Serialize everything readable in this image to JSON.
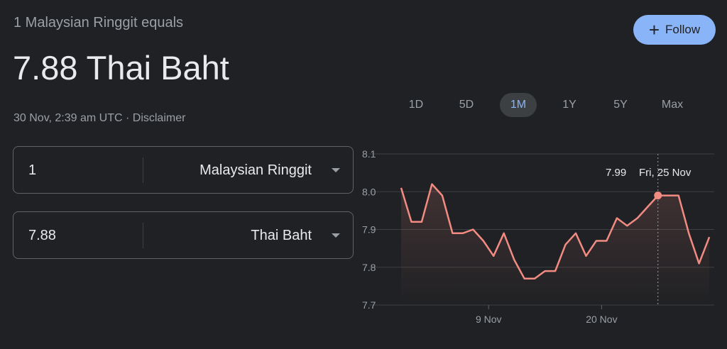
{
  "header": {
    "subtitle": "1 Malaysian Ringgit equals",
    "headline": "7.88 Thai Baht",
    "timestamp": "30 Nov, 2:39 am UTC",
    "separator": " · ",
    "disclaimer": "Disclaimer"
  },
  "follow_button": {
    "icon": "plus-icon",
    "label": "Follow",
    "plus": "+"
  },
  "converter": [
    {
      "amount": "1",
      "currency": "Malaysian Ringgit"
    },
    {
      "amount": "7.88",
      "currency": "Thai Baht"
    }
  ],
  "ranges": [
    {
      "label": "1D",
      "active": false
    },
    {
      "label": "5D",
      "active": false
    },
    {
      "label": "1M",
      "active": true
    },
    {
      "label": "1Y",
      "active": false
    },
    {
      "label": "5Y",
      "active": false
    },
    {
      "label": "Max",
      "active": false
    }
  ],
  "colors": {
    "background": "#202124",
    "line": "#f28b82",
    "accent": "#8ab4f8"
  },
  "chart_data": {
    "type": "line",
    "ylim": [
      7.7,
      8.1
    ],
    "yticks": [
      "8.1",
      "8.0",
      "7.9",
      "7.8",
      "7.7"
    ],
    "grid": true,
    "xticks": [
      {
        "label": "9 Nov",
        "index": 9
      },
      {
        "label": "20 Nov",
        "index": 20
      }
    ],
    "dates": [
      "31 Oct",
      "1 Nov",
      "2 Nov",
      "3 Nov",
      "4 Nov",
      "5 Nov",
      "6 Nov",
      "7 Nov",
      "8 Nov",
      "9 Nov",
      "10 Nov",
      "11 Nov",
      "12 Nov",
      "13 Nov",
      "14 Nov",
      "15 Nov",
      "16 Nov",
      "17 Nov",
      "18 Nov",
      "19 Nov",
      "20 Nov",
      "21 Nov",
      "22 Nov",
      "23 Nov",
      "24 Nov",
      "25 Nov",
      "26 Nov",
      "27 Nov",
      "28 Nov",
      "29 Nov",
      "30 Nov"
    ],
    "values": [
      8.01,
      7.92,
      7.92,
      8.02,
      7.99,
      7.89,
      7.89,
      7.9,
      7.87,
      7.83,
      7.89,
      7.82,
      7.77,
      7.77,
      7.79,
      7.79,
      7.86,
      7.89,
      7.83,
      7.87,
      7.87,
      7.93,
      7.91,
      7.93,
      7.96,
      7.99,
      7.99,
      7.99,
      7.89,
      7.81,
      7.88
    ],
    "hover": {
      "index": 25,
      "value": "7.99",
      "date": "Fri, 25 Nov"
    }
  }
}
